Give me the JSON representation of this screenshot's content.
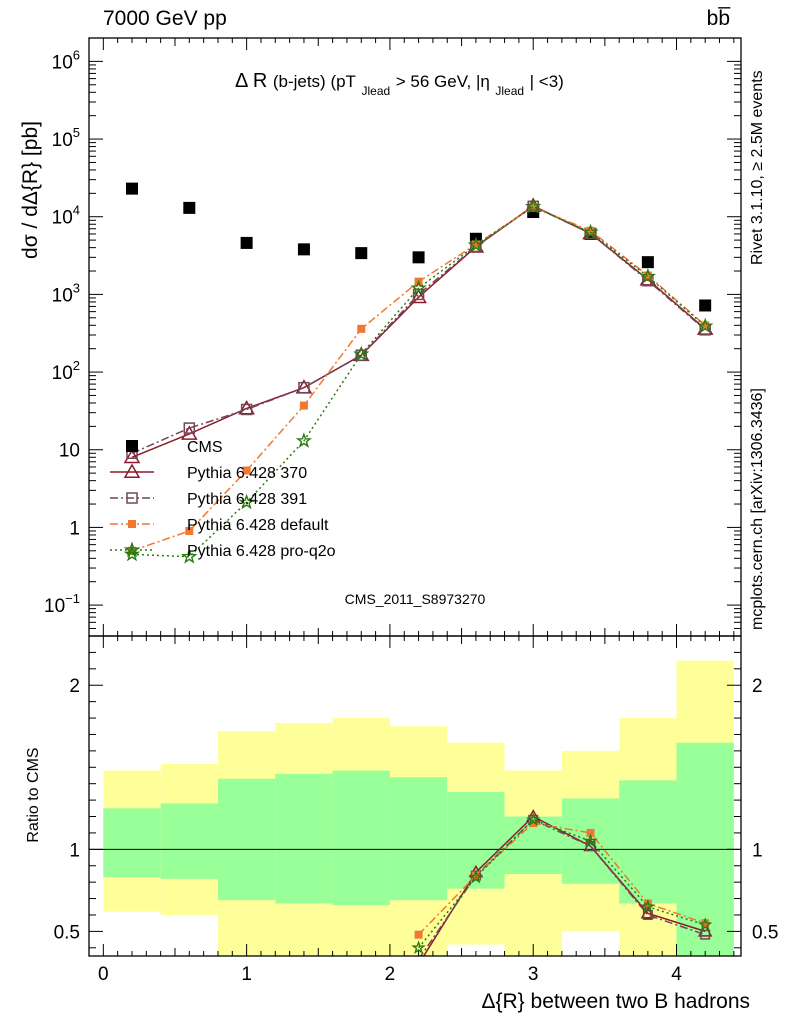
{
  "header": {
    "left": "7000 GeV pp",
    "right": "bb̅"
  },
  "side_texts": {
    "rivet": "Rivet 3.1.10, ≥ 2.5M events",
    "mcplots": "mcplots.cern.ch [arXiv:1306.3436]"
  },
  "chart_data": [
    {
      "type": "scatter",
      "panel": "main",
      "title_parts": {
        "main": "Δ R",
        "jets": "(b-jets) (pT",
        "jlead1": "Jlead",
        "cut": " >  56 GeV, |η",
        "jlead2": "Jlead",
        "end": "| <3)"
      },
      "ylabel": "dσ / dΔ{R} [pb]",
      "yscale": "log",
      "ylim": [
        0.04,
        2000000
      ],
      "xlim": [
        -0.1,
        4.45
      ],
      "watermark": "CMS_2011_S8973270",
      "y_ticks": [
        {
          "v": 0.1,
          "base": "10",
          "exp": "−1"
        },
        {
          "v": 1,
          "base": "1",
          "exp": ""
        },
        {
          "v": 10,
          "base": "10",
          "exp": ""
        },
        {
          "v": 100,
          "base": "10",
          "exp": "2"
        },
        {
          "v": 1000,
          "base": "10",
          "exp": "3"
        },
        {
          "v": 10000,
          "base": "10",
          "exp": "4"
        },
        {
          "v": 100000,
          "base": "10",
          "exp": "5"
        },
        {
          "v": 1000000,
          "base": "10",
          "exp": "6"
        }
      ],
      "legend_position": "lower-left",
      "series": [
        {
          "name": "CMS",
          "color": "#000000",
          "marker": "filled-square",
          "line": "none",
          "x": [
            0.2,
            0.6,
            1.0,
            1.4,
            1.8,
            2.2,
            2.6,
            3.0,
            3.4,
            3.8,
            4.2
          ],
          "y": [
            23000,
            13000,
            4600,
            3800,
            3400,
            3000,
            5200,
            11500,
            6000,
            2600,
            720
          ]
        },
        {
          "name": "Pythia 6.428 370",
          "color": "#8c1c2c",
          "marker": "open-triangle",
          "line": "solid",
          "x": [
            0.2,
            0.6,
            1.0,
            1.4,
            1.8,
            2.2,
            2.6,
            3.0,
            3.4,
            3.8,
            4.2
          ],
          "y": [
            8,
            16,
            34,
            63,
            165,
            920,
            4100,
            13800,
            6100,
            1550,
            360
          ]
        },
        {
          "name": "Pythia 6.428 391",
          "color": "#704858",
          "marker": "open-square",
          "line": "dash-dot",
          "x": [
            0.2,
            0.6,
            1.0,
            1.4,
            1.8,
            2.2,
            2.6,
            3.0,
            3.4,
            3.8,
            4.2
          ],
          "y": [
            9,
            19,
            33,
            63,
            165,
            1000,
            4150,
            13600,
            6100,
            1500,
            350
          ]
        },
        {
          "name": "Pythia 6.428 default",
          "color": "#f07830",
          "marker": "filled-square-small",
          "line": "dash-dot",
          "x": [
            0.2,
            0.6,
            1.0,
            1.4,
            1.8,
            2.2,
            2.6,
            3.0,
            3.4,
            3.8,
            4.2
          ],
          "y": [
            0.5,
            0.9,
            5.4,
            37,
            360,
            1460,
            4400,
            13300,
            6600,
            1750,
            400
          ]
        },
        {
          "name": "Pythia 6.428 pro-q2o",
          "color": "#2a7a10",
          "marker": "open-star",
          "line": "dotted",
          "x": [
            0.2,
            0.6,
            1.0,
            1.4,
            1.8,
            2.2,
            2.6,
            3.0,
            3.4,
            3.8,
            4.2
          ],
          "y": [
            0.45,
            0.42,
            2.1,
            13,
            170,
            1200,
            4300,
            13500,
            6300,
            1700,
            390
          ]
        }
      ]
    },
    {
      "type": "area",
      "panel": "ratio",
      "ylabel": "Ratio to CMS",
      "xlabel": "Δ{R} between two B hadrons",
      "ylim": [
        0.35,
        2.3
      ],
      "xlim": [
        -0.1,
        4.45
      ],
      "x_ticks": [
        0,
        1,
        2,
        3,
        4
      ],
      "y_ticks": [
        0.5,
        1,
        2
      ],
      "bins": {
        "edges": [
          0.0,
          0.4,
          0.8,
          1.2,
          1.6,
          2.0,
          2.4,
          2.8,
          3.2,
          3.6,
          4.0,
          4.4
        ],
        "yellow_lo": [
          0.62,
          0.6,
          0.0,
          0.0,
          0.0,
          0.0,
          0.42,
          0.0,
          0.5,
          0.0,
          0.0
        ],
        "yellow_hi": [
          1.48,
          1.52,
          1.72,
          1.77,
          1.8,
          1.75,
          1.65,
          1.48,
          1.6,
          1.8,
          2.15
        ],
        "green_lo": [
          0.83,
          0.82,
          0.69,
          0.67,
          0.66,
          0.69,
          0.76,
          0.85,
          0.79,
          0.67,
          0.0
        ],
        "green_hi": [
          1.25,
          1.28,
          1.43,
          1.46,
          1.48,
          1.44,
          1.35,
          1.2,
          1.31,
          1.42,
          1.65
        ]
      },
      "series": [
        {
          "name": "Pythia 6.428 370",
          "x": [
            2.2,
            2.6,
            3.0,
            3.4,
            3.8,
            4.2
          ],
          "y": [
            0.3,
            0.86,
            1.2,
            1.02,
            0.61,
            0.5
          ]
        },
        {
          "name": "Pythia 6.428 391",
          "x": [
            2.2,
            2.6,
            3.0,
            3.4,
            3.8,
            4.2
          ],
          "y": [
            0.33,
            0.84,
            1.18,
            1.02,
            0.6,
            0.48
          ]
        },
        {
          "name": "Pythia 6.428 default",
          "x": [
            2.2,
            2.6,
            3.0,
            3.4,
            3.8,
            4.2
          ],
          "y": [
            0.48,
            0.84,
            1.16,
            1.1,
            0.67,
            0.55
          ]
        },
        {
          "name": "Pythia 6.428 pro-q2o",
          "x": [
            2.2,
            2.6,
            3.0,
            3.4,
            3.8,
            4.2
          ],
          "y": [
            0.4,
            0.83,
            1.18,
            1.05,
            0.65,
            0.54
          ]
        }
      ]
    }
  ]
}
